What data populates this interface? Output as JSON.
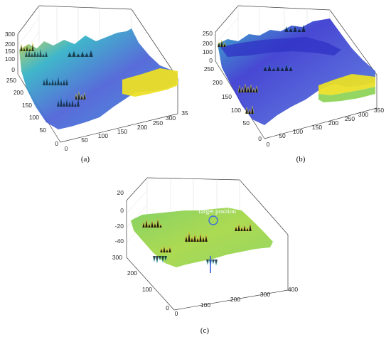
{
  "colors": {
    "low": "#3a3ad0",
    "mid": "#27b4c0",
    "high": "#e9e21f",
    "flat_c": "#8fd45a",
    "axis": "#3a3a3a",
    "grid": "#dcdcdc",
    "marker": "#3f6fd8"
  },
  "chart_data": [
    {
      "type": "surface",
      "panel_label": "(a)",
      "zlim": [
        0,
        300
      ],
      "z_ticks": [
        "0",
        "100",
        "150",
        "200",
        "300"
      ],
      "y_ticks": [
        "0",
        "50",
        "100",
        "150",
        "200",
        "250"
      ],
      "x_ticks": [
        "0",
        "50",
        "100",
        "150",
        "200",
        "250",
        "300",
        "35"
      ],
      "grid": true
    },
    {
      "type": "surface",
      "panel_label": "(b)",
      "zlim": [
        0,
        250
      ],
      "z_ticks": [
        "0",
        "100",
        "200",
        "250"
      ],
      "y_ticks": [
        "0",
        "50",
        "100",
        "150",
        "200",
        "250"
      ],
      "x_ticks": [
        "0",
        "50",
        "100",
        "150",
        "200",
        "250",
        "300",
        "350"
      ],
      "grid": true
    },
    {
      "type": "surface",
      "panel_label": "(c)",
      "zlim": [
        -50,
        20
      ],
      "z_ticks": [
        "20",
        "0",
        "-20",
        "-40"
      ],
      "y_ticks": [
        "0",
        "100",
        "200",
        "300"
      ],
      "x_ticks": [
        "0",
        "100",
        "200",
        "300",
        "400"
      ],
      "annotation": "Target position",
      "grid": true
    }
  ]
}
